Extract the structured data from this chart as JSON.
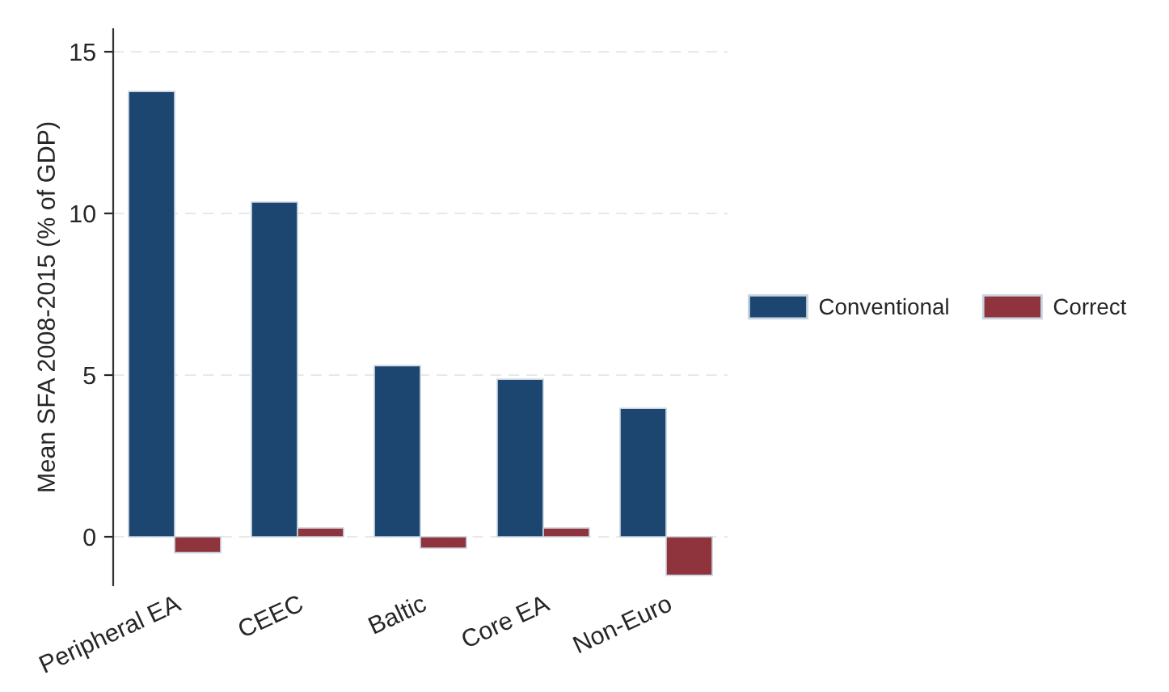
{
  "chart_data": {
    "type": "bar",
    "ylabel": "Mean SFA 2008-2015 (% of GDP)",
    "categories": [
      "Peripheral EA",
      "CEEC",
      "Baltic",
      "Core EA",
      "Non-Euro"
    ],
    "series": [
      {
        "name": "Conventional",
        "color": "#1c4670",
        "values": [
          13.77,
          10.35,
          5.29,
          4.87,
          3.97
        ]
      },
      {
        "name": "Correct",
        "color": "#8f343c",
        "values": [
          -0.49,
          0.27,
          -0.35,
          0.27,
          -1.19
        ]
      }
    ],
    "ylim": [
      -1.5,
      15.7
    ],
    "yticks": [
      0,
      5,
      10,
      15
    ],
    "grid": "y",
    "legend": "right"
  }
}
